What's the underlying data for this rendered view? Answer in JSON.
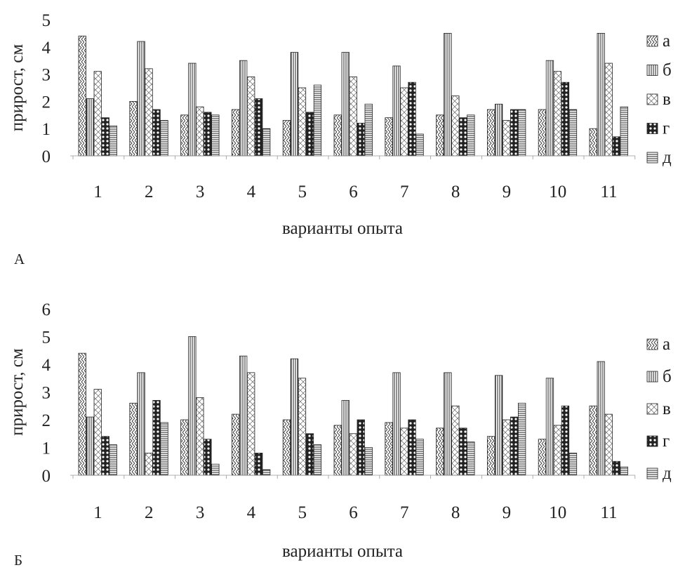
{
  "chart_data": [
    {
      "type": "bar",
      "panel_label": "А",
      "xlabel": "варианты опыта",
      "ylabel": "прирост, см",
      "ylim": [
        0,
        5
      ],
      "yticks": [
        "0",
        "1",
        "2",
        "3",
        "4",
        "5"
      ],
      "categories": [
        "1",
        "2",
        "3",
        "4",
        "5",
        "6",
        "7",
        "8",
        "9",
        "10",
        "11"
      ],
      "grid": false,
      "legend_position": "right",
      "series": [
        {
          "name": "а",
          "values": [
            4.4,
            2.0,
            1.5,
            1.7,
            1.3,
            1.5,
            1.4,
            1.5,
            1.7,
            1.7,
            1.0
          ]
        },
        {
          "name": "б",
          "values": [
            2.1,
            4.2,
            3.4,
            3.5,
            3.8,
            3.8,
            3.3,
            4.5,
            1.9,
            3.5,
            4.5
          ]
        },
        {
          "name": "в",
          "values": [
            3.1,
            3.2,
            1.8,
            2.9,
            2.5,
            2.9,
            2.5,
            2.2,
            1.3,
            3.1,
            3.4
          ]
        },
        {
          "name": "г",
          "values": [
            1.4,
            1.7,
            1.6,
            2.1,
            1.6,
            1.2,
            2.7,
            1.4,
            1.7,
            2.7,
            0.7
          ]
        },
        {
          "name": "д",
          "values": [
            1.1,
            1.3,
            1.5,
            1.0,
            2.6,
            1.9,
            0.8,
            1.5,
            1.7,
            1.7,
            1.8
          ]
        }
      ]
    },
    {
      "type": "bar",
      "panel_label": "Б",
      "xlabel": "варианты опыта",
      "ylabel": "прирост, см",
      "ylim": [
        0,
        6
      ],
      "yticks": [
        "0",
        "1",
        "2",
        "3",
        "4",
        "5",
        "6"
      ],
      "categories": [
        "1",
        "2",
        "3",
        "4",
        "5",
        "6",
        "7",
        "8",
        "9",
        "10",
        "11"
      ],
      "grid": false,
      "legend_position": "right",
      "series": [
        {
          "name": "а",
          "values": [
            4.4,
            2.6,
            2.0,
            2.2,
            2.0,
            1.8,
            1.9,
            1.7,
            1.4,
            1.3,
            2.5
          ]
        },
        {
          "name": "б",
          "values": [
            2.1,
            3.7,
            5.0,
            4.3,
            4.2,
            2.7,
            3.7,
            3.7,
            3.6,
            3.5,
            4.1
          ]
        },
        {
          "name": "в",
          "values": [
            3.1,
            0.8,
            2.8,
            3.7,
            3.5,
            1.5,
            1.7,
            2.5,
            2.0,
            1.8,
            2.2
          ]
        },
        {
          "name": "г",
          "values": [
            1.4,
            2.7,
            1.3,
            0.8,
            1.5,
            2.0,
            2.0,
            1.7,
            2.1,
            2.5,
            0.5
          ]
        },
        {
          "name": "д",
          "values": [
            1.1,
            1.9,
            0.4,
            0.2,
            1.1,
            1.0,
            1.3,
            1.2,
            2.6,
            0.8,
            0.3
          ]
        }
      ]
    }
  ]
}
